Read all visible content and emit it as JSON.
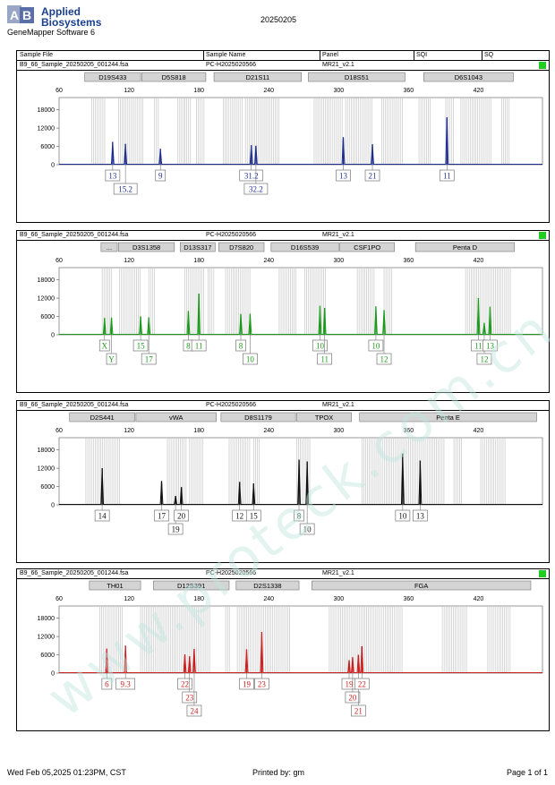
{
  "header": {
    "logo_line1": "Applied",
    "logo_line2": "Biosystems",
    "software": "GeneMapper Software 6",
    "date": "20250205"
  },
  "columns": {
    "sample_file": "Sample File",
    "sample_name": "Sample Name",
    "panel": "Panel",
    "sqi": "SQI",
    "sq": "SQ"
  },
  "panels": [
    {
      "file": "B9_66_Sample_20250205_001244.fsa",
      "name": "PC-H2025020566",
      "panel": "MR21_v2.1",
      "color": "#1f2f8f"
    },
    {
      "file": "B9_66_Sample_20250205_001244.fsa",
      "name": "PC-H2025020566",
      "panel": "MR21_v2.1",
      "color": "#1a9a1a"
    },
    {
      "file": "B9_66_Sample_20250205_001244.fsa",
      "name": "PC-H2025020566",
      "panel": "MR21_v2.1",
      "color": "#111111"
    },
    {
      "file": "B9_66_Sample_20250205_001244.fsa",
      "name": "PC-H2025020566",
      "panel": "MR21_v2.1",
      "color": "#cc1f1f"
    }
  ],
  "chart_data": [
    {
      "type": "line",
      "dye": "blue",
      "xlim": [
        60,
        475
      ],
      "ylim": [
        0,
        22000
      ],
      "x_ticks": [
        60,
        120,
        180,
        240,
        300,
        360,
        420
      ],
      "y_ticks": [
        0,
        6000,
        12000,
        18000
      ],
      "markers": [
        {
          "label": "D19S433",
          "from": 82,
          "to": 130
        },
        {
          "label": "D5S818",
          "from": 131,
          "to": 186
        },
        {
          "label": "D21S11",
          "from": 193,
          "to": 268
        },
        {
          "label": "D18S51",
          "from": 274,
          "to": 357
        },
        {
          "label": "D6S1043",
          "from": 373,
          "to": 450
        }
      ],
      "bins": [
        [
          88,
          100
        ],
        [
          111,
          133
        ],
        [
          142,
          146
        ],
        [
          162,
          168
        ],
        [
          168,
          173
        ],
        [
          178,
          185
        ],
        [
          201,
          217
        ],
        [
          220,
          250
        ],
        [
          279,
          304
        ],
        [
          306,
          330
        ],
        [
          337,
          356
        ],
        [
          369,
          380
        ],
        [
          392,
          400
        ],
        [
          405,
          432
        ],
        [
          440,
          448
        ]
      ],
      "peaks": [
        {
          "x": 106,
          "y": 7500
        },
        {
          "x": 117,
          "y": 6800
        },
        {
          "x": 147,
          "y": 5200
        },
        {
          "x": 225,
          "y": 6400
        },
        {
          "x": 229,
          "y": 6200
        },
        {
          "x": 304,
          "y": 9000
        },
        {
          "x": 329,
          "y": 6700
        },
        {
          "x": 393,
          "y": 15500
        }
      ],
      "labels": [
        {
          "x": 106,
          "text": "13",
          "row": 0
        },
        {
          "x": 117,
          "text": "15.2",
          "row": 1
        },
        {
          "x": 147,
          "text": "9",
          "row": 0
        },
        {
          "x": 225,
          "text": "31.2",
          "row": 0
        },
        {
          "x": 229,
          "text": "32.2",
          "row": 1
        },
        {
          "x": 304,
          "text": "13",
          "row": 0
        },
        {
          "x": 329,
          "text": "21",
          "row": 0
        },
        {
          "x": 393,
          "text": "11",
          "row": 0
        }
      ]
    },
    {
      "type": "line",
      "dye": "green",
      "xlim": [
        60,
        475
      ],
      "ylim": [
        0,
        22000
      ],
      "x_ticks": [
        60,
        120,
        180,
        240,
        300,
        360,
        420
      ],
      "y_ticks": [
        0,
        6000,
        12000,
        18000
      ],
      "markers": [
        {
          "label": "...",
          "from": 96,
          "to": 110
        },
        {
          "label": "D3S1358",
          "from": 111,
          "to": 159
        },
        {
          "label": "D13S317",
          "from": 164,
          "to": 194
        },
        {
          "label": "D7S820",
          "from": 197,
          "to": 236
        },
        {
          "label": "D16S539",
          "from": 242,
          "to": 300
        },
        {
          "label": "CSF1PO",
          "from": 301,
          "to": 348
        },
        {
          "label": "Penta D",
          "from": 366,
          "to": 451
        }
      ],
      "bins": [
        [
          97,
          106
        ],
        [
          112,
          130
        ],
        [
          137,
          142
        ],
        [
          168,
          184
        ],
        [
          188,
          193
        ],
        [
          203,
          224
        ],
        [
          249,
          265
        ],
        [
          271,
          289
        ],
        [
          316,
          332
        ],
        [
          339,
          347
        ],
        [
          409,
          449
        ]
      ],
      "peaks": [
        {
          "x": 99,
          "y": 5500
        },
        {
          "x": 105,
          "y": 5600
        },
        {
          "x": 130,
          "y": 6000
        },
        {
          "x": 137,
          "y": 5700
        },
        {
          "x": 171,
          "y": 7800
        },
        {
          "x": 180,
          "y": 13500
        },
        {
          "x": 216,
          "y": 6800
        },
        {
          "x": 224,
          "y": 6900
        },
        {
          "x": 284,
          "y": 9500
        },
        {
          "x": 288,
          "y": 8800
        },
        {
          "x": 332,
          "y": 9300
        },
        {
          "x": 339,
          "y": 8100
        },
        {
          "x": 420,
          "y": 12000
        },
        {
          "x": 425,
          "y": 3900
        },
        {
          "x": 430,
          "y": 9200
        }
      ],
      "labels": [
        {
          "x": 99,
          "text": "X",
          "row": 0
        },
        {
          "x": 105,
          "text": "Y",
          "row": 1
        },
        {
          "x": 130,
          "text": "15",
          "row": 0
        },
        {
          "x": 137,
          "text": "17",
          "row": 1
        },
        {
          "x": 171,
          "text": "8",
          "row": 0
        },
        {
          "x": 180,
          "text": "11",
          "row": 0
        },
        {
          "x": 216,
          "text": "8",
          "row": 0
        },
        {
          "x": 224,
          "text": "10",
          "row": 1
        },
        {
          "x": 284,
          "text": "10",
          "row": 0
        },
        {
          "x": 288,
          "text": "11",
          "row": 1
        },
        {
          "x": 332,
          "text": "10",
          "row": 0
        },
        {
          "x": 339,
          "text": "12",
          "row": 1
        },
        {
          "x": 420,
          "text": "11",
          "row": 0
        },
        {
          "x": 425,
          "text": "12",
          "row": 1
        },
        {
          "x": 430,
          "text": "13",
          "row": 0
        }
      ]
    },
    {
      "type": "line",
      "dye": "yellow",
      "xlim": [
        60,
        475
      ],
      "ylim": [
        0,
        22000
      ],
      "x_ticks": [
        60,
        120,
        180,
        240,
        300,
        360,
        420
      ],
      "y_ticks": [
        0,
        6000,
        12000,
        18000
      ],
      "markers": [
        {
          "label": "D2S441",
          "from": 69,
          "to": 125
        },
        {
          "label": "vWA",
          "from": 126,
          "to": 195
        },
        {
          "label": "D8S1179",
          "from": 199,
          "to": 263
        },
        {
          "label": "TPOX",
          "from": 264,
          "to": 311
        },
        {
          "label": "Penta E",
          "from": 318,
          "to": 470
        }
      ],
      "bins": [
        [
          83,
          113
        ],
        [
          153,
          170
        ],
        [
          172,
          184
        ],
        [
          206,
          224
        ],
        [
          227,
          233
        ],
        [
          264,
          276
        ],
        [
          320,
          392
        ],
        [
          399,
          406
        ],
        [
          422,
          444
        ]
      ],
      "peaks": [
        {
          "x": 97,
          "y": 12000
        },
        {
          "x": 148,
          "y": 7800
        },
        {
          "x": 160,
          "y": 2900
        },
        {
          "x": 165,
          "y": 5800
        },
        {
          "x": 215,
          "y": 7500
        },
        {
          "x": 227,
          "y": 7000
        },
        {
          "x": 266,
          "y": 14800
        },
        {
          "x": 273,
          "y": 14200
        },
        {
          "x": 355,
          "y": 16800
        },
        {
          "x": 370,
          "y": 14500
        }
      ],
      "labels": [
        {
          "x": 97,
          "text": "14",
          "row": 0
        },
        {
          "x": 148,
          "text": "17",
          "row": 0
        },
        {
          "x": 160,
          "text": "19",
          "row": 1
        },
        {
          "x": 165,
          "text": "20",
          "row": 0
        },
        {
          "x": 215,
          "text": "12",
          "row": 0
        },
        {
          "x": 227,
          "text": "15",
          "row": 0
        },
        {
          "x": 266,
          "text": "8",
          "row": 0
        },
        {
          "x": 273,
          "text": "10",
          "row": 1
        },
        {
          "x": 355,
          "text": "10",
          "row": 0
        },
        {
          "x": 370,
          "text": "13",
          "row": 0
        }
      ]
    },
    {
      "type": "line",
      "dye": "red",
      "xlim": [
        60,
        475
      ],
      "ylim": [
        0,
        22000
      ],
      "x_ticks": [
        60,
        120,
        180,
        240,
        300,
        360,
        420
      ],
      "y_ticks": [
        0,
        6000,
        12000,
        18000
      ],
      "markers": [
        {
          "label": "TH01",
          "from": 86,
          "to": 130
        },
        {
          "label": "D12S391",
          "from": 141,
          "to": 206
        },
        {
          "label": "D2S1338",
          "from": 212,
          "to": 266
        },
        {
          "label": "FGA",
          "from": 277,
          "to": 465
        }
      ],
      "bins": [
        [
          95,
          115
        ],
        [
          130,
          190
        ],
        [
          203,
          207
        ],
        [
          213,
          258
        ],
        [
          292,
          355
        ],
        [
          389,
          410
        ],
        [
          428,
          448
        ]
      ],
      "peaks": [
        {
          "x": 101,
          "y": 8000
        },
        {
          "x": 117,
          "y": 9000
        },
        {
          "x": 168,
          "y": 6100
        },
        {
          "x": 172,
          "y": 5500
        },
        {
          "x": 176,
          "y": 7900
        },
        {
          "x": 221,
          "y": 7800
        },
        {
          "x": 234,
          "y": 13500
        },
        {
          "x": 309,
          "y": 4200
        },
        {
          "x": 312,
          "y": 5200
        },
        {
          "x": 317,
          "y": 6000
        },
        {
          "x": 320,
          "y": 8800
        }
      ],
      "labels": [
        {
          "x": 101,
          "text": "6",
          "row": 0
        },
        {
          "x": 117,
          "text": "9.3",
          "row": 0
        },
        {
          "x": 168,
          "text": "22",
          "row": 0
        },
        {
          "x": 172,
          "text": "23",
          "row": 1
        },
        {
          "x": 176,
          "text": "24",
          "row": 2
        },
        {
          "x": 221,
          "text": "19",
          "row": 0
        },
        {
          "x": 234,
          "text": "23",
          "row": 0
        },
        {
          "x": 309,
          "text": "19",
          "row": 0
        },
        {
          "x": 312,
          "text": "20",
          "row": 1
        },
        {
          "x": 317,
          "text": "21",
          "row": 2
        },
        {
          "x": 320,
          "text": "22",
          "row": 0
        }
      ]
    }
  ],
  "footer": {
    "timestamp": "Wed Feb 05,2025 01:23PM, CST",
    "printed_by": "Printed by: gm",
    "page": "Page 1 of 1"
  },
  "watermark": "www.proteck.com.cn"
}
